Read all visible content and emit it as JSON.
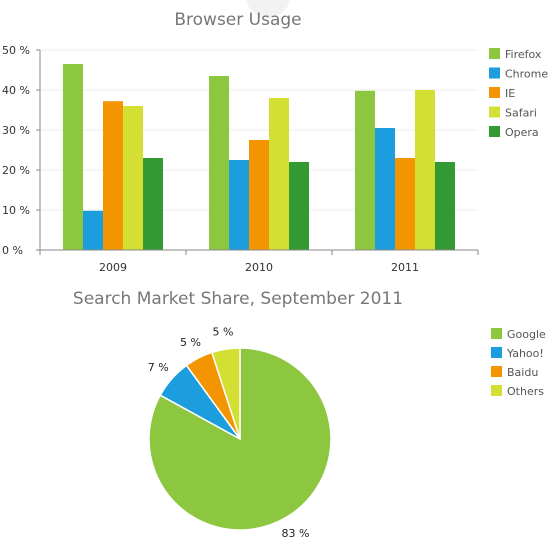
{
  "chart_data": [
    {
      "type": "bar",
      "title": "Browser Usage",
      "categories": [
        "2009",
        "2010",
        "2011"
      ],
      "ylim": [
        0,
        50
      ],
      "yticks": [
        "0 %",
        "10 %",
        "20 %",
        "30 %",
        "40 %",
        "50 %"
      ],
      "ytick_values": [
        0,
        10,
        20,
        30,
        40,
        50
      ],
      "grid": true,
      "legend_position": "right",
      "series": [
        {
          "name": "Firefox",
          "color": "#8dc63f",
          "values": [
            46.5,
            43.5,
            39.8
          ]
        },
        {
          "name": "Chrome",
          "color": "#1b9dde",
          "values": [
            9.8,
            22.5,
            30.5
          ]
        },
        {
          "name": "IE",
          "color": "#f39500",
          "values": [
            37.2,
            27.5,
            23.0
          ]
        },
        {
          "name": "Safari",
          "color": "#d4df33",
          "values": [
            36.0,
            38.0,
            40.0
          ]
        },
        {
          "name": "Opera",
          "color": "#339933",
          "values": [
            23.0,
            22.0,
            22.0
          ]
        }
      ]
    },
    {
      "type": "pie",
      "title": "Search Market Share, September 2011",
      "legend_position": "right",
      "slices": [
        {
          "name": "Google",
          "color": "#8dc63f",
          "value": 83,
          "label": "83 %"
        },
        {
          "name": "Yahoo!",
          "color": "#1b9dde",
          "value": 7,
          "label": "7 %"
        },
        {
          "name": "Baidu",
          "color": "#f39500",
          "value": 5,
          "label": "5 %"
        },
        {
          "name": "Others",
          "color": "#d4df33",
          "value": 5,
          "label": "5 %"
        }
      ]
    }
  ]
}
